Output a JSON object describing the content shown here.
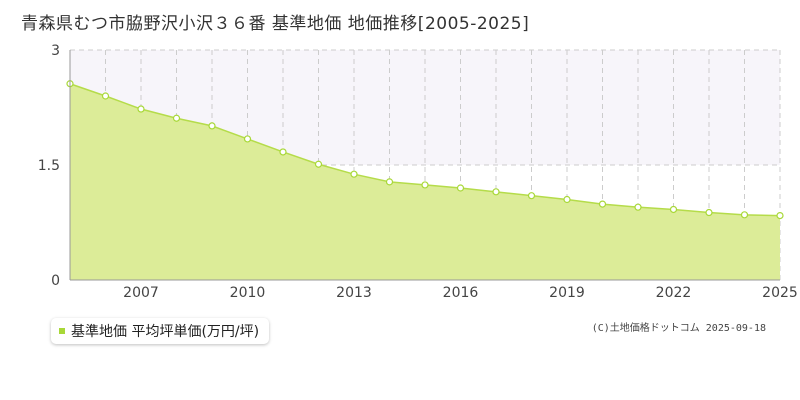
{
  "title": "青森県むつ市脇野沢小沢３６番 基準地価 地価推移[2005-2025]",
  "legend_label": "基準地価 平均坪単価(万円/坪)",
  "copyright": "(C)土地価格ドットコム 2025-09-18",
  "colors": {
    "fill": "#dcec98",
    "line": "#b5dc4a",
    "point_stroke": "#a8d838",
    "grid": "#cccccc",
    "band": "#f7f5fa"
  },
  "chart_data": {
    "type": "area",
    "title": "",
    "xlabel": "",
    "ylabel": "",
    "x": [
      2005,
      2006,
      2007,
      2008,
      2009,
      2010,
      2011,
      2012,
      2013,
      2014,
      2015,
      2016,
      2017,
      2018,
      2019,
      2020,
      2021,
      2022,
      2023,
      2024,
      2025
    ],
    "series": [
      {
        "name": "基準地価 平均坪単価(万円/坪)",
        "values": [
          2.56,
          2.4,
          2.23,
          2.11,
          2.01,
          1.84,
          1.67,
          1.51,
          1.38,
          1.28,
          1.24,
          1.2,
          1.15,
          1.1,
          1.05,
          0.99,
          0.95,
          0.92,
          0.88,
          0.85,
          0.84
        ]
      }
    ],
    "xlim": [
      2005,
      2025
    ],
    "ylim": [
      0,
      3
    ],
    "x_tick_labels": [
      "2007",
      "2010",
      "2013",
      "2016",
      "2019",
      "2022",
      "2025"
    ],
    "y_tick_labels": [
      "3",
      "1.5",
      "0"
    ],
    "grid": true,
    "legend_position": "bottom-left"
  }
}
